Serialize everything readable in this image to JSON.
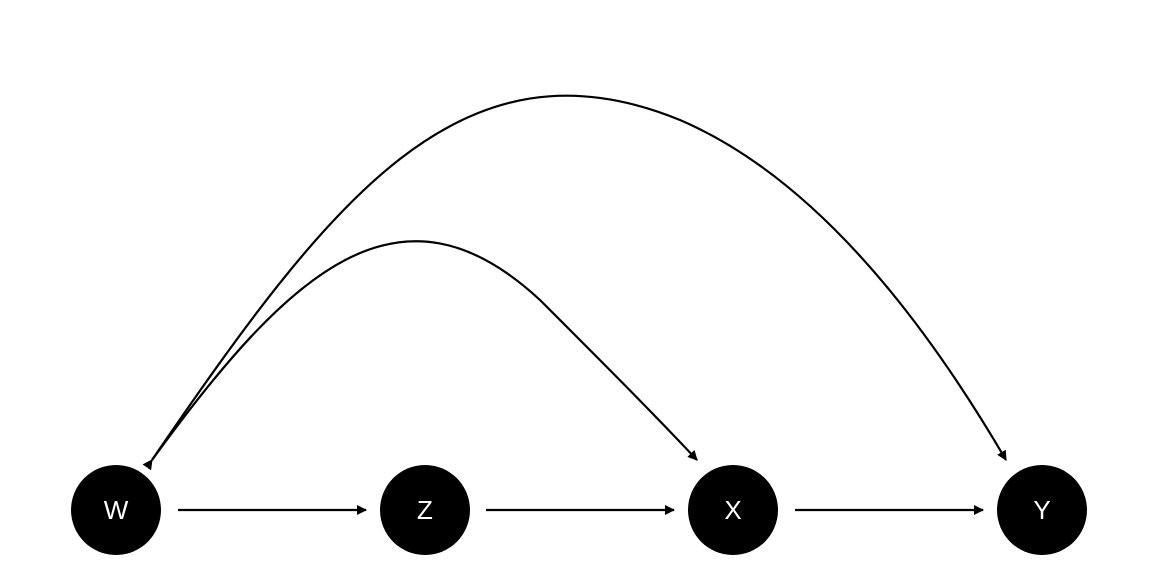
{
  "diagram": {
    "type": "directed-acyclic-graph",
    "colors": {
      "node_fill": "#000000",
      "node_label": "#ffffff",
      "edge": "#000000",
      "background": "#ffffff"
    },
    "nodes": [
      {
        "id": "W",
        "label": "W"
      },
      {
        "id": "Z",
        "label": "Z"
      },
      {
        "id": "X",
        "label": "X"
      },
      {
        "id": "Y",
        "label": "Y"
      }
    ],
    "edges": [
      {
        "from": "W",
        "to": "Z",
        "style": "straight"
      },
      {
        "from": "Z",
        "to": "X",
        "style": "straight"
      },
      {
        "from": "X",
        "to": "Y",
        "style": "straight"
      },
      {
        "from": "X",
        "to": "W",
        "style": "curved",
        "bidirected": true
      },
      {
        "from": "Y",
        "to": "W",
        "style": "curved",
        "bidirected": true
      }
    ]
  }
}
